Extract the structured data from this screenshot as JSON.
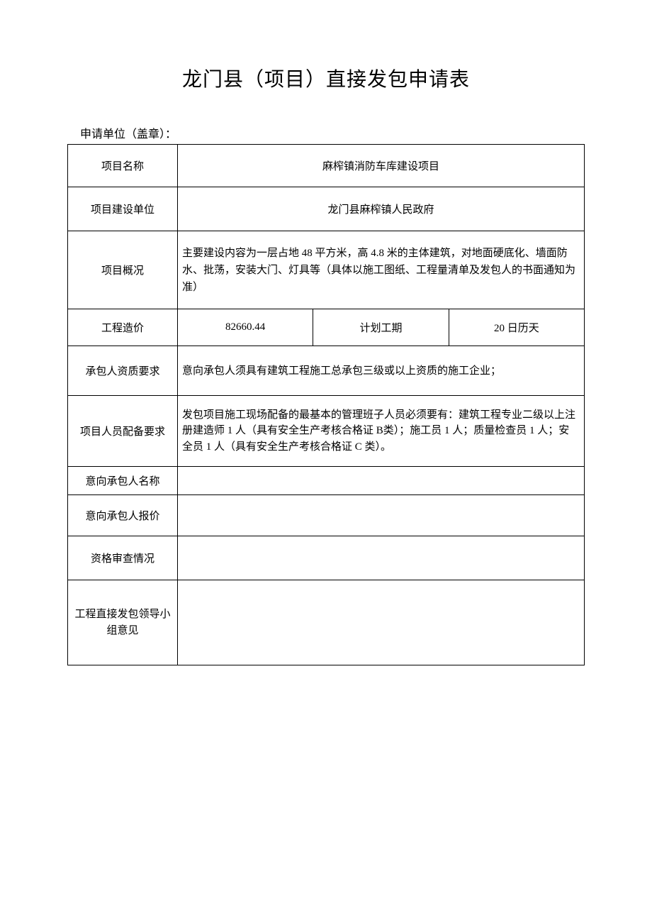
{
  "title": "龙门县（项目）直接发包申请表",
  "subtitle": "申请单位（盖章）：",
  "rows": {
    "project_name": {
      "label": "项目名称",
      "value": "麻榨镇消防车库建设项目"
    },
    "build_unit": {
      "label": "项目建设单位",
      "value": "龙门县麻榨镇人民政府"
    },
    "overview": {
      "label": "项目概况",
      "value": "主要建设内容为一层占地 48 平方米，高 4.8 米的主体建筑，对地面硬底化、墙面防水、批荡，安装大门、灯具等（具体以施工图纸、工程量清单及发包人的书面通知为准）"
    },
    "cost": {
      "label": "工程造价",
      "value": "82660.44",
      "period_label": "计划工期",
      "period_value": "20 日历天"
    },
    "qualification": {
      "label": "承包人资质要求",
      "value": "意向承包人须具有建筑工程施工总承包三级或以上资质的施工企业；"
    },
    "staffing": {
      "label": "项目人员配备要求",
      "value": "发包项目施工现场配备的最基本的管理班子人员必须要有：建筑工程专业二级以上注册建造师 1 人（具有安全生产考核合格证 B类）；施工员 1 人；质量检查员 1 人；安全员 1 人（具有安全生产考核合格证 C 类）。"
    },
    "contractor_name": {
      "label": "意向承包人名称",
      "value": ""
    },
    "contractor_price": {
      "label": "意向承包人报价",
      "value": ""
    },
    "review": {
      "label": "资格审查情况",
      "value": ""
    },
    "opinion": {
      "label_line1": "工程直接发包领导小",
      "label_line2": "组意见",
      "value": ""
    }
  },
  "styling": {
    "page_bg": "#ffffff",
    "border_color": "#000000",
    "title_fontsize": 28,
    "body_fontsize": 15,
    "font_family": "SimSun"
  }
}
